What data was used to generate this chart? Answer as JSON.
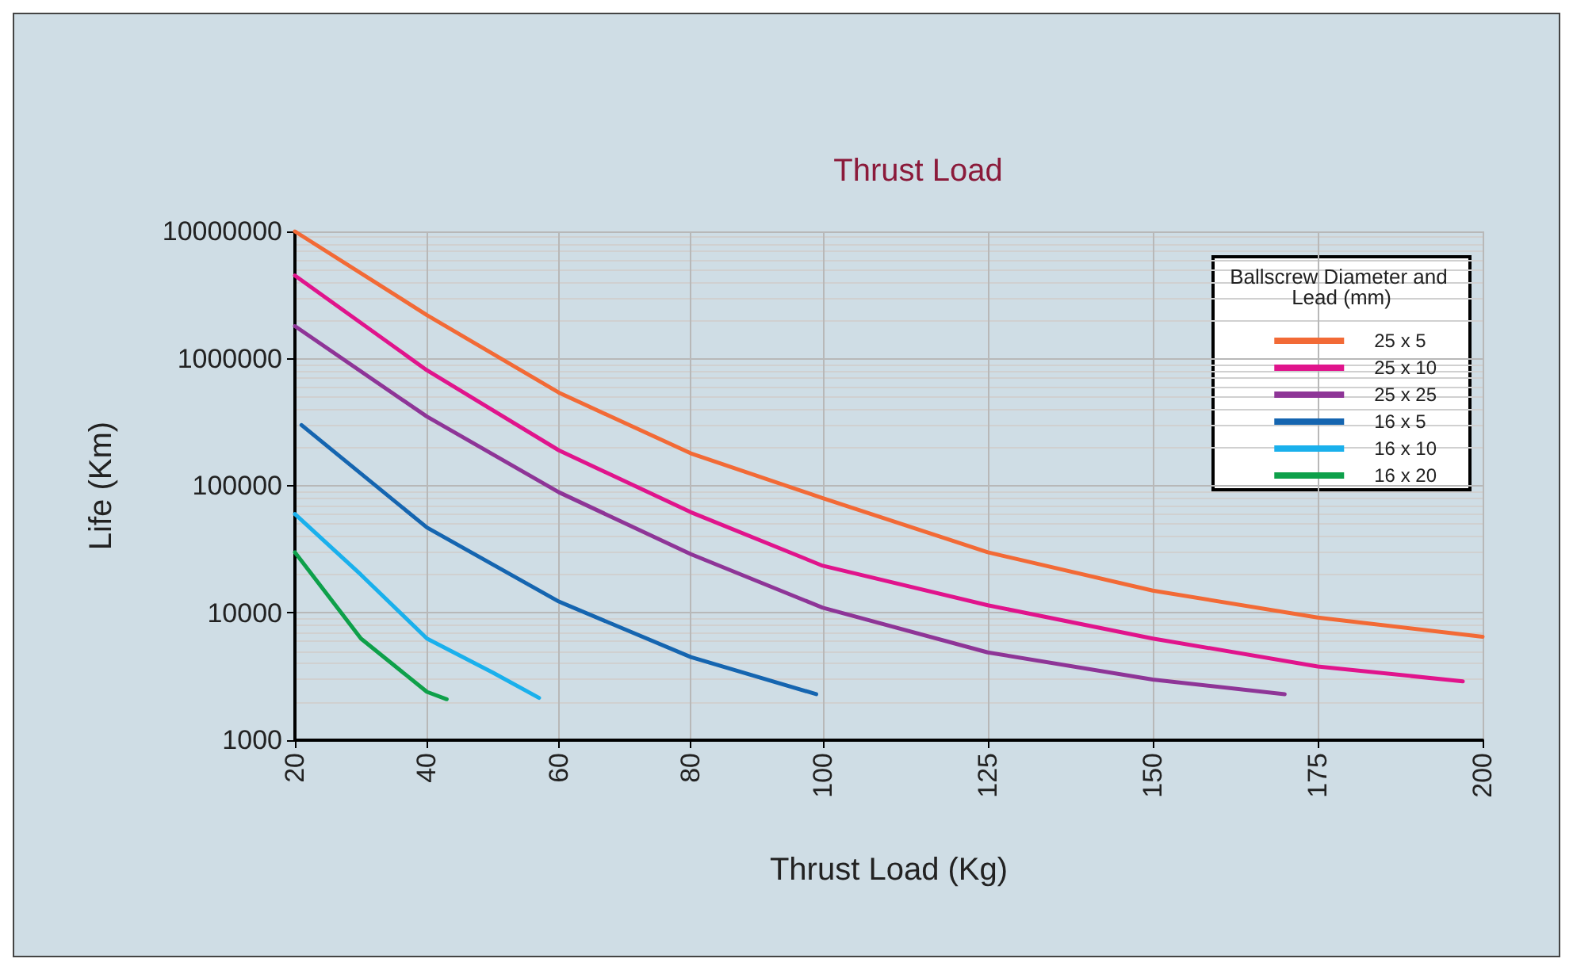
{
  "chart_data": {
    "type": "line",
    "title": "Thrust Load",
    "xlabel": "Thrust Load (Kg)",
    "ylabel": "Life (Km)",
    "legend_title": "Ballscrew Diameter and Lead (mm)",
    "log": "y",
    "xlim": [
      20,
      200
    ],
    "xticks": [
      20,
      40,
      60,
      80,
      100,
      125,
      150,
      175,
      200
    ],
    "ylim": [
      1000,
      10000000
    ],
    "yticks": [
      1000,
      10000,
      100000,
      1000000,
      10000000
    ],
    "grid": true,
    "legend": "top right",
    "marker": "none",
    "line_style": "solid",
    "series": [
      {
        "name": "25 x 5",
        "color": "#f26a36",
        "x": [
          20,
          40,
          60,
          80,
          100,
          125,
          150,
          175,
          200
        ],
        "values": [
          10000000,
          2200000,
          540000,
          180000,
          80000,
          30000,
          15000,
          9200,
          6500
        ]
      },
      {
        "name": "25 x 10",
        "color": "#e0148c",
        "x": [
          20,
          40,
          60,
          80,
          100,
          125,
          150,
          175,
          197
        ],
        "values": [
          4500000,
          810000,
          190000,
          62000,
          23500,
          11500,
          6300,
          3800,
          2900
        ]
      },
      {
        "name": "25 x 25",
        "color": "#8e3597",
        "x": [
          20,
          40,
          60,
          80,
          100,
          125,
          150,
          170
        ],
        "values": [
          1800000,
          350000,
          89000,
          29000,
          11000,
          4900,
          3000,
          2300
        ]
      },
      {
        "name": "16 x 5",
        "color": "#1565b0",
        "x": [
          21,
          40,
          60,
          80,
          99
        ],
        "values": [
          300000,
          47000,
          12300,
          4500,
          2300
        ]
      },
      {
        "name": "16 x 10",
        "color": "#1ab0ec",
        "x": [
          20,
          30,
          40,
          50,
          57
        ],
        "values": [
          60000,
          20000,
          6300,
          3400,
          2150
        ]
      },
      {
        "name": "16 x 20",
        "color": "#0ea04a",
        "x": [
          20,
          30,
          40,
          43
        ],
        "values": [
          30000,
          6300,
          2400,
          2100
        ]
      }
    ]
  }
}
